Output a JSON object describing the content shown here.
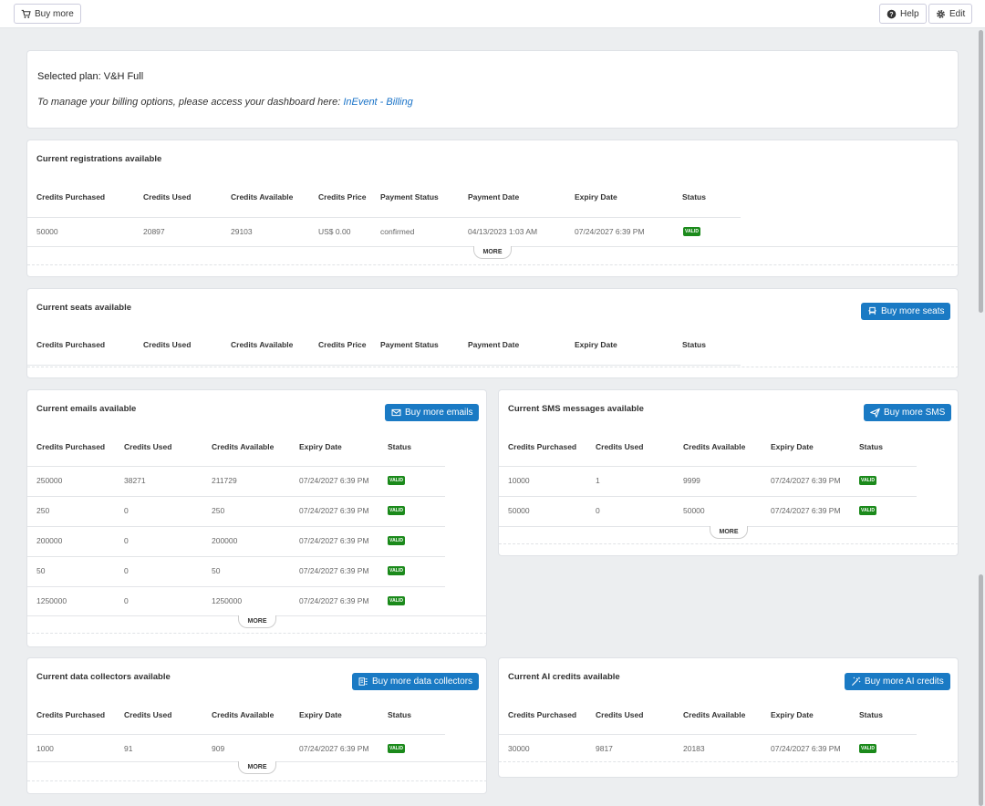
{
  "toolbar": {
    "buy_more_label": "Buy more",
    "help_label": "Help",
    "edit_label": "Edit"
  },
  "plan": {
    "selected_text": "Selected plan: V&H Full",
    "billing_text": "To manage your billing options, please access your dashboard here: ",
    "billing_link": "InEvent - Billing"
  },
  "common": {
    "more_label": "MORE",
    "valid_label": "VALID"
  },
  "registrations": {
    "title": "Current registrations available",
    "headers": [
      "Credits Purchased",
      "Credits Used",
      "Credits Available",
      "Credits Price",
      "Payment Status",
      "Payment Date",
      "Expiry Date",
      "Status"
    ],
    "rows": [
      [
        "50000",
        "20897",
        "29103",
        "US$ 0.00",
        "confirmed",
        "04/13/2023 1:03 AM",
        "07/24/2027 6:39 PM",
        "VALID"
      ]
    ]
  },
  "seats": {
    "title": "Current seats available",
    "button": "Buy more seats",
    "headers": [
      "Credits Purchased",
      "Credits Used",
      "Credits Available",
      "Credits Price",
      "Payment Status",
      "Payment Date",
      "Expiry Date",
      "Status"
    ]
  },
  "emails": {
    "title": "Current emails available",
    "button": "Buy more emails",
    "headers": [
      "Credits Purchased",
      "Credits Used",
      "Credits Available",
      "Expiry Date",
      "Status"
    ],
    "rows": [
      [
        "250000",
        "38271",
        "211729",
        "07/24/2027 6:39 PM",
        "VALID"
      ],
      [
        "250",
        "0",
        "250",
        "07/24/2027 6:39 PM",
        "VALID"
      ],
      [
        "200000",
        "0",
        "200000",
        "07/24/2027 6:39 PM",
        "VALID"
      ],
      [
        "50",
        "0",
        "50",
        "07/24/2027 6:39 PM",
        "VALID"
      ],
      [
        "1250000",
        "0",
        "1250000",
        "07/24/2027 6:39 PM",
        "VALID"
      ]
    ]
  },
  "sms": {
    "title": "Current SMS messages available",
    "button": "Buy more SMS",
    "headers": [
      "Credits Purchased",
      "Credits Used",
      "Credits Available",
      "Expiry Date",
      "Status"
    ],
    "rows": [
      [
        "10000",
        "1",
        "9999",
        "07/24/2027 6:39 PM",
        "VALID"
      ],
      [
        "50000",
        "0",
        "50000",
        "07/24/2027 6:39 PM",
        "VALID"
      ]
    ]
  },
  "collectors": {
    "title": "Current data collectors available",
    "button": "Buy more data collectors",
    "headers": [
      "Credits Purchased",
      "Credits Used",
      "Credits Available",
      "Expiry Date",
      "Status"
    ],
    "rows": [
      [
        "1000",
        "91",
        "909",
        "07/24/2027 6:39 PM",
        "VALID"
      ]
    ]
  },
  "ai": {
    "title": "Current AI credits available",
    "button": "Buy more AI credits",
    "headers": [
      "Credits Purchased",
      "Credits Used",
      "Credits Available",
      "Expiry Date",
      "Status"
    ],
    "rows": [
      [
        "30000",
        "9817",
        "20183",
        "07/24/2027 6:39 PM",
        "VALID"
      ]
    ]
  },
  "colors": {
    "accent": "#1a7ac4",
    "valid_badge": "#1b8a1b",
    "link": "#1a73c8"
  },
  "icons": {
    "cart": "cart-icon",
    "help": "help-icon",
    "edit": "gear-icon",
    "seat": "seat-icon",
    "email": "envelope-icon",
    "sms": "paper-plane-icon",
    "collector": "collector-icon",
    "ai": "magic-wand-icon"
  }
}
